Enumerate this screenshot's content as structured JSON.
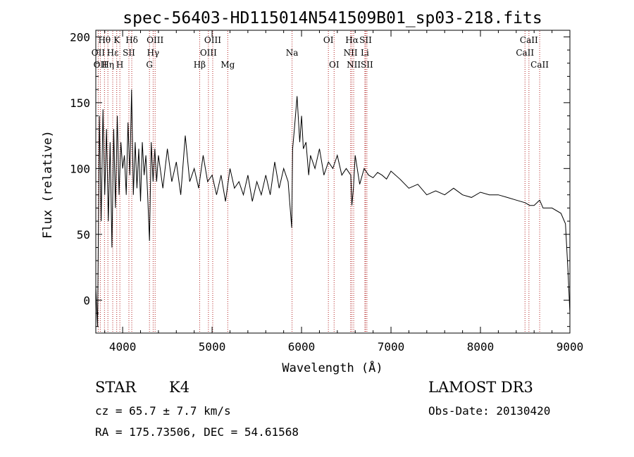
{
  "chart_data": {
    "type": "line",
    "title": "spec-56403-HD115014N541509B01_sp03-218.fits",
    "xlabel": "Wavelength (Å)",
    "ylabel": "Flux (relative)",
    "xlim": [
      3700,
      9000
    ],
    "ylim": [
      -25,
      205
    ],
    "x_ticks": [
      4000,
      5000,
      6000,
      7000,
      8000,
      9000
    ],
    "y_ticks": [
      0,
      50,
      100,
      150,
      200
    ],
    "grid": false,
    "series": [
      {
        "name": "flux",
        "x": [
          3700,
          3720,
          3740,
          3760,
          3780,
          3800,
          3820,
          3840,
          3860,
          3880,
          3900,
          3920,
          3940,
          3960,
          3980,
          4000,
          4020,
          4040,
          4060,
          4080,
          4100,
          4120,
          4140,
          4160,
          4180,
          4200,
          4220,
          4240,
          4260,
          4280,
          4300,
          4320,
          4340,
          4360,
          4380,
          4400,
          4450,
          4500,
          4550,
          4600,
          4650,
          4700,
          4750,
          4800,
          4850,
          4900,
          4950,
          5000,
          5050,
          5100,
          5150,
          5200,
          5250,
          5300,
          5350,
          5400,
          5450,
          5500,
          5550,
          5600,
          5650,
          5700,
          5750,
          5800,
          5850,
          5890,
          5900,
          5920,
          5950,
          5980,
          6000,
          6020,
          6050,
          6080,
          6100,
          6150,
          6200,
          6250,
          6300,
          6350,
          6400,
          6450,
          6500,
          6550,
          6563,
          6580,
          6600,
          6650,
          6700,
          6750,
          6800,
          6850,
          6900,
          6950,
          7000,
          7100,
          7200,
          7300,
          7400,
          7500,
          7600,
          7700,
          7800,
          7900,
          8000,
          8100,
          8200,
          8300,
          8400,
          8500,
          8550,
          8600,
          8662,
          8700,
          8800,
          8900,
          8950,
          8980,
          9000
        ],
        "values": [
          10,
          -20,
          140,
          60,
          145,
          80,
          130,
          60,
          120,
          40,
          130,
          70,
          140,
          80,
          120,
          100,
          110,
          80,
          135,
          95,
          160,
          80,
          120,
          85,
          115,
          75,
          120,
          95,
          110,
          80,
          45,
          120,
          90,
          115,
          90,
          110,
          85,
          115,
          90,
          105,
          80,
          125,
          90,
          100,
          85,
          110,
          90,
          95,
          80,
          95,
          75,
          100,
          85,
          90,
          80,
          95,
          75,
          90,
          80,
          95,
          80,
          105,
          85,
          100,
          90,
          55,
          115,
          130,
          155,
          120,
          140,
          115,
          120,
          95,
          110,
          100,
          115,
          95,
          105,
          100,
          110,
          95,
          100,
          95,
          72,
          85,
          110,
          88,
          100,
          95,
          93,
          97,
          95,
          92,
          98,
          92,
          85,
          88,
          80,
          83,
          80,
          85,
          80,
          78,
          82,
          80,
          80,
          78,
          76,
          74,
          72,
          72,
          76,
          70,
          70,
          66,
          58,
          20,
          -10
        ]
      }
    ],
    "line_labels": [
      {
        "wl": 3727,
        "label": "OII",
        "row": 2
      },
      {
        "wl": 3750,
        "label": "OII",
        "row": 3
      },
      {
        "wl": 3797,
        "label": "Hθ",
        "row": 1
      },
      {
        "wl": 3835,
        "label": "Hη",
        "row": 3
      },
      {
        "wl": 3889,
        "label": "Hε",
        "row": 2
      },
      {
        "wl": 3934,
        "label": "K",
        "row": 1
      },
      {
        "wl": 3969,
        "label": "H",
        "row": 3
      },
      {
        "wl": 4070,
        "label": "SII",
        "row": 2
      },
      {
        "wl": 4102,
        "label": "Hδ",
        "row": 1
      },
      {
        "wl": 4300,
        "label": "G",
        "row": 3
      },
      {
        "wl": 4341,
        "label": "Hγ",
        "row": 2
      },
      {
        "wl": 4363,
        "label": "OIII",
        "row": 1
      },
      {
        "wl": 4861,
        "label": "Hβ",
        "row": 3
      },
      {
        "wl": 4959,
        "label": "OIII",
        "row": 2
      },
      {
        "wl": 5007,
        "label": "OIII",
        "row": 1
      },
      {
        "wl": 5175,
        "label": "Mg",
        "row": 3
      },
      {
        "wl": 5894,
        "label": "Na",
        "row": 2
      },
      {
        "wl": 6300,
        "label": "OI",
        "row": 1
      },
      {
        "wl": 6364,
        "label": "OI",
        "row": 3
      },
      {
        "wl": 6548,
        "label": "NII",
        "row": 2
      },
      {
        "wl": 6563,
        "label": "Hα",
        "row": 1
      },
      {
        "wl": 6583,
        "label": "NII",
        "row": 3
      },
      {
        "wl": 6708,
        "label": "Li",
        "row": 2
      },
      {
        "wl": 6716,
        "label": "SII",
        "row": 1
      },
      {
        "wl": 6731,
        "label": "SII",
        "row": 3
      },
      {
        "wl": 8498,
        "label": "CaII",
        "row": 2
      },
      {
        "wl": 8542,
        "label": "CaII",
        "row": 1
      },
      {
        "wl": 8662,
        "label": "CaII",
        "row": 3
      }
    ]
  },
  "info": {
    "object_class": "STAR",
    "subclass": "K4",
    "survey": "LAMOST DR3",
    "redshift": "cz = 65.7 ± 7.7 km/s",
    "obs_date": "Obs-Date: 20130420",
    "coords": "RA = 175.73506, DEC =  54.61568"
  },
  "colors": {
    "line_marker": "#b22222",
    "spectrum": "#000000"
  }
}
